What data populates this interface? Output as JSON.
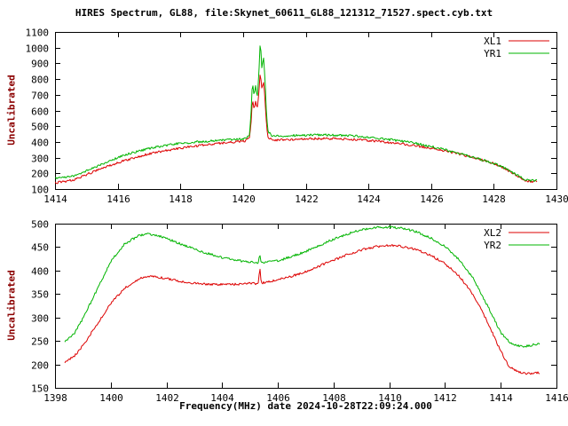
{
  "page": {
    "title": "HIRES Spectrum, GL88, file:Skynet_60611_GL88_121312_71527.spect.cyb.txt",
    "xlabel": "Frequency(MHz) date 2024-10-28T22:09:24.000",
    "ylabel": "Uncalibrated",
    "colors": {
      "background": "#ffffff",
      "axis": "#000000",
      "ylabel_color": "#8b0000",
      "series_red": "#dd0000",
      "series_green": "#00b400"
    }
  },
  "chart_data": [
    {
      "type": "line",
      "name": "hires-spectrum-top",
      "ylabel": "Uncalibrated",
      "xlim": [
        1414,
        1430
      ],
      "ylim": [
        100,
        1100
      ],
      "xticks": [
        1414,
        1416,
        1418,
        1420,
        1422,
        1424,
        1426,
        1428,
        1430
      ],
      "yticks": [
        100,
        200,
        300,
        400,
        500,
        600,
        700,
        800,
        900,
        1000,
        1100
      ],
      "grid": false,
      "legend_position": "top-right",
      "series": [
        {
          "name": "XL1",
          "color": "#dd0000",
          "points": [
            [
              1414.0,
              140
            ],
            [
              1414.3,
              148
            ],
            [
              1414.6,
              160
            ],
            [
              1415.0,
              192
            ],
            [
              1415.5,
              232
            ],
            [
              1416.0,
              268
            ],
            [
              1416.5,
              298
            ],
            [
              1417.0,
              324
            ],
            [
              1417.5,
              344
            ],
            [
              1418.0,
              360
            ],
            [
              1418.5,
              374
            ],
            [
              1419.0,
              386
            ],
            [
              1419.5,
              396
            ],
            [
              1420.0,
              404
            ],
            [
              1420.1,
              408
            ],
            [
              1420.2,
              428
            ],
            [
              1420.25,
              505
            ],
            [
              1420.3,
              675
            ],
            [
              1420.35,
              615
            ],
            [
              1420.4,
              655
            ],
            [
              1420.45,
              610
            ],
            [
              1420.5,
              700
            ],
            [
              1420.55,
              845
            ],
            [
              1420.6,
              740
            ],
            [
              1420.65,
              790
            ],
            [
              1420.7,
              675
            ],
            [
              1420.75,
              500
            ],
            [
              1420.8,
              432
            ],
            [
              1420.9,
              416
            ],
            [
              1421.0,
              412
            ],
            [
              1421.5,
              415
            ],
            [
              1422.0,
              419
            ],
            [
              1422.5,
              421
            ],
            [
              1423.0,
              420
            ],
            [
              1423.5,
              416
            ],
            [
              1424.0,
              409
            ],
            [
              1424.5,
              400
            ],
            [
              1425.0,
              389
            ],
            [
              1425.5,
              376
            ],
            [
              1426.0,
              360
            ],
            [
              1426.5,
              341
            ],
            [
              1427.0,
              318
            ],
            [
              1427.5,
              292
            ],
            [
              1428.0,
              262
            ],
            [
              1428.4,
              225
            ],
            [
              1428.8,
              178
            ],
            [
              1429.0,
              155
            ],
            [
              1429.2,
              148
            ],
            [
              1429.4,
              150
            ]
          ]
        },
        {
          "name": "YR1",
          "color": "#00b400",
          "points": [
            [
              1414.0,
              168
            ],
            [
              1414.3,
              172
            ],
            [
              1414.6,
              185
            ],
            [
              1415.0,
              215
            ],
            [
              1415.5,
              258
            ],
            [
              1416.0,
              300
            ],
            [
              1416.5,
              333
            ],
            [
              1417.0,
              358
            ],
            [
              1417.5,
              377
            ],
            [
              1418.0,
              391
            ],
            [
              1418.5,
              400
            ],
            [
              1419.0,
              407
            ],
            [
              1419.5,
              413
            ],
            [
              1420.0,
              419
            ],
            [
              1420.1,
              424
            ],
            [
              1420.2,
              444
            ],
            [
              1420.25,
              555
            ],
            [
              1420.3,
              790
            ],
            [
              1420.35,
              700
            ],
            [
              1420.4,
              760
            ],
            [
              1420.45,
              680
            ],
            [
              1420.5,
              820
            ],
            [
              1420.55,
              1050
            ],
            [
              1420.6,
              870
            ],
            [
              1420.65,
              950
            ],
            [
              1420.7,
              800
            ],
            [
              1420.75,
              560
            ],
            [
              1420.8,
              468
            ],
            [
              1420.9,
              444
            ],
            [
              1421.0,
              437
            ],
            [
              1421.5,
              440
            ],
            [
              1422.0,
              443
            ],
            [
              1422.5,
              445
            ],
            [
              1423.0,
              443
            ],
            [
              1423.5,
              438
            ],
            [
              1424.0,
              430
            ],
            [
              1424.5,
              420
            ],
            [
              1425.0,
              407
            ],
            [
              1425.5,
              391
            ],
            [
              1426.0,
              371
            ],
            [
              1426.5,
              347
            ],
            [
              1427.0,
              321
            ],
            [
              1427.5,
              294
            ],
            [
              1428.0,
              264
            ],
            [
              1428.4,
              228
            ],
            [
              1428.8,
              182
            ],
            [
              1429.0,
              158
            ],
            [
              1429.2,
              153
            ],
            [
              1429.4,
              158
            ]
          ]
        }
      ]
    },
    {
      "type": "line",
      "name": "hires-spectrum-bottom",
      "ylabel": "Uncalibrated",
      "xlabel": "Frequency(MHz) date 2024-10-28T22:09:24.000",
      "xlim": [
        1398,
        1416
      ],
      "ylim": [
        150,
        500
      ],
      "xticks": [
        1398,
        1400,
        1402,
        1404,
        1406,
        1408,
        1410,
        1412,
        1414,
        1416
      ],
      "yticks": [
        150,
        200,
        250,
        300,
        350,
        400,
        450,
        500
      ],
      "grid": false,
      "legend_position": "top-right",
      "series": [
        {
          "name": "XL2",
          "color": "#dd0000",
          "points": [
            [
              1398.35,
              205
            ],
            [
              1398.7,
              218
            ],
            [
              1399.0,
              240
            ],
            [
              1399.5,
              285
            ],
            [
              1400.0,
              330
            ],
            [
              1400.5,
              362
            ],
            [
              1401.0,
              382
            ],
            [
              1401.3,
              388
            ],
            [
              1401.6,
              387
            ],
            [
              1402.0,
              383
            ],
            [
              1402.5,
              377
            ],
            [
              1403.0,
              373
            ],
            [
              1403.5,
              371
            ],
            [
              1404.0,
              370
            ],
            [
              1404.5,
              371
            ],
            [
              1405.0,
              373
            ],
            [
              1405.3,
              372
            ],
            [
              1405.35,
              412
            ],
            [
              1405.4,
              373
            ],
            [
              1406.0,
              380
            ],
            [
              1406.5,
              388
            ],
            [
              1407.0,
              398
            ],
            [
              1407.5,
              410
            ],
            [
              1408.0,
              422
            ],
            [
              1408.5,
              434
            ],
            [
              1409.0,
              444
            ],
            [
              1409.5,
              451
            ],
            [
              1410.0,
              454
            ],
            [
              1410.5,
              451
            ],
            [
              1411.0,
              444
            ],
            [
              1411.5,
              432
            ],
            [
              1412.0,
              415
            ],
            [
              1412.5,
              389
            ],
            [
              1413.0,
              349
            ],
            [
              1413.5,
              294
            ],
            [
              1414.0,
              228
            ],
            [
              1414.3,
              196
            ],
            [
              1414.6,
              184
            ],
            [
              1415.0,
              180
            ],
            [
              1415.4,
              182
            ]
          ]
        },
        {
          "name": "YR2",
          "color": "#00b400",
          "points": [
            [
              1398.35,
              248
            ],
            [
              1398.7,
              266
            ],
            [
              1399.0,
              298
            ],
            [
              1399.5,
              358
            ],
            [
              1400.0,
              420
            ],
            [
              1400.5,
              457
            ],
            [
              1401.0,
              474
            ],
            [
              1401.3,
              478
            ],
            [
              1401.6,
              476
            ],
            [
              1402.0,
              469
            ],
            [
              1402.5,
              457
            ],
            [
              1403.0,
              446
            ],
            [
              1403.5,
              436
            ],
            [
              1404.0,
              428
            ],
            [
              1404.5,
              422
            ],
            [
              1405.0,
              418
            ],
            [
              1405.3,
              415
            ],
            [
              1405.35,
              438
            ],
            [
              1405.4,
              416
            ],
            [
              1406.0,
              421
            ],
            [
              1406.5,
              430
            ],
            [
              1407.0,
              441
            ],
            [
              1407.5,
              454
            ],
            [
              1408.0,
              467
            ],
            [
              1408.5,
              478
            ],
            [
              1409.0,
              487
            ],
            [
              1409.5,
              492
            ],
            [
              1410.0,
              493
            ],
            [
              1410.5,
              490
            ],
            [
              1411.0,
              482
            ],
            [
              1411.5,
              469
            ],
            [
              1412.0,
              451
            ],
            [
              1412.5,
              424
            ],
            [
              1413.0,
              384
            ],
            [
              1413.5,
              328
            ],
            [
              1414.0,
              268
            ],
            [
              1414.4,
              243
            ],
            [
              1414.8,
              238
            ],
            [
              1415.2,
              242
            ],
            [
              1415.4,
              245
            ]
          ]
        }
      ]
    }
  ]
}
